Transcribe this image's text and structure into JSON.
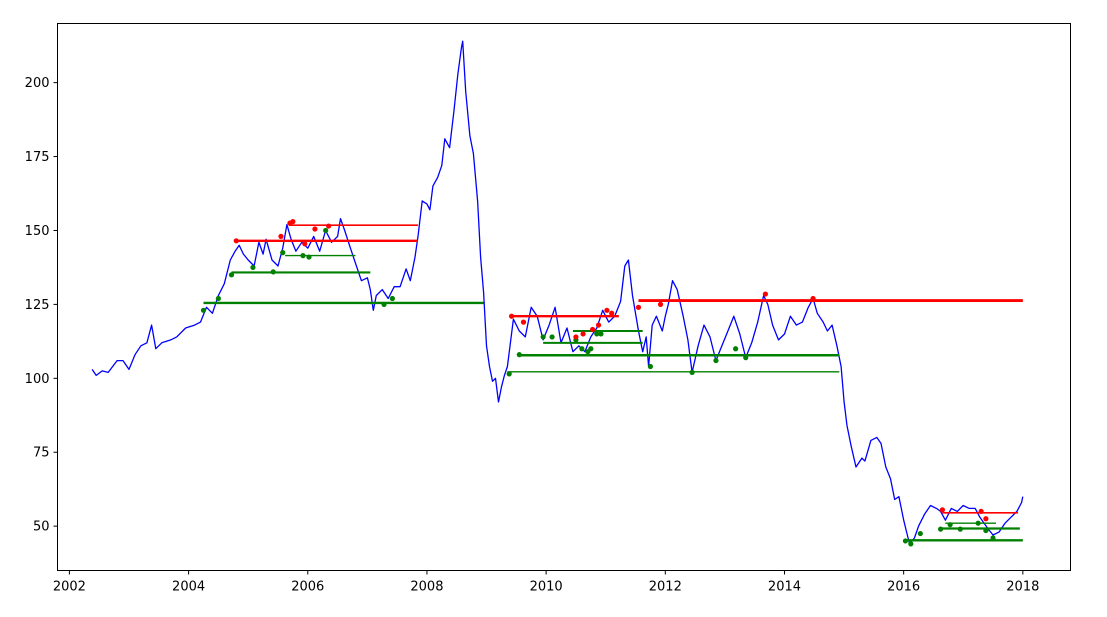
{
  "chart_data": {
    "type": "line",
    "title": "",
    "xlabel": "",
    "ylabel": "",
    "xlim": [
      2001.8,
      2018.8
    ],
    "ylim": [
      35,
      220
    ],
    "x_ticks": [
      {
        "value": 2002,
        "label": "2002"
      },
      {
        "value": 2004,
        "label": "2004"
      },
      {
        "value": 2006,
        "label": "2006"
      },
      {
        "value": 2008,
        "label": "2008"
      },
      {
        "value": 2010,
        "label": "2010"
      },
      {
        "value": 2012,
        "label": "2012"
      },
      {
        "value": 2014,
        "label": "2014"
      },
      {
        "value": 2016,
        "label": "2016"
      },
      {
        "value": 2018,
        "label": "2018"
      }
    ],
    "y_ticks": [
      {
        "value": 50,
        "label": "50"
      },
      {
        "value": 75,
        "label": "75"
      },
      {
        "value": 100,
        "label": "100"
      },
      {
        "value": 125,
        "label": "125"
      },
      {
        "value": 150,
        "label": "150"
      },
      {
        "value": 175,
        "label": "175"
      },
      {
        "value": 200,
        "label": "200"
      }
    ],
    "grid": false,
    "legend": "none",
    "colors": {
      "price": "#0000ff",
      "resistance": "#ff0000",
      "support": "#008000"
    },
    "price": [
      [
        2002.38,
        103
      ],
      [
        2002.45,
        101
      ],
      [
        2002.55,
        102.5
      ],
      [
        2002.65,
        102
      ],
      [
        2002.8,
        106
      ],
      [
        2002.9,
        106
      ],
      [
        2003.0,
        103
      ],
      [
        2003.1,
        108
      ],
      [
        2003.2,
        111
      ],
      [
        2003.3,
        112
      ],
      [
        2003.38,
        118
      ],
      [
        2003.45,
        110
      ],
      [
        2003.55,
        112
      ],
      [
        2003.7,
        113
      ],
      [
        2003.8,
        114
      ],
      [
        2003.95,
        117
      ],
      [
        2004.1,
        118
      ],
      [
        2004.2,
        119
      ],
      [
        2004.3,
        124
      ],
      [
        2004.4,
        122
      ],
      [
        2004.5,
        128
      ],
      [
        2004.6,
        132
      ],
      [
        2004.7,
        140
      ],
      [
        2004.78,
        143
      ],
      [
        2004.85,
        145
      ],
      [
        2004.92,
        142
      ],
      [
        2005.0,
        140
      ],
      [
        2005.1,
        138
      ],
      [
        2005.18,
        146
      ],
      [
        2005.25,
        142
      ],
      [
        2005.3,
        147
      ],
      [
        2005.4,
        140
      ],
      [
        2005.5,
        138
      ],
      [
        2005.58,
        144
      ],
      [
        2005.65,
        152
      ],
      [
        2005.72,
        147
      ],
      [
        2005.8,
        143
      ],
      [
        2005.9,
        146
      ],
      [
        2006.0,
        144
      ],
      [
        2006.1,
        148
      ],
      [
        2006.2,
        143
      ],
      [
        2006.3,
        150
      ],
      [
        2006.4,
        146
      ],
      [
        2006.5,
        148
      ],
      [
        2006.55,
        154
      ],
      [
        2006.62,
        150
      ],
      [
        2006.7,
        145
      ],
      [
        2006.8,
        139
      ],
      [
        2006.9,
        133
      ],
      [
        2007.0,
        134
      ],
      [
        2007.05,
        130
      ],
      [
        2007.1,
        123
      ],
      [
        2007.15,
        128
      ],
      [
        2007.25,
        130
      ],
      [
        2007.35,
        127
      ],
      [
        2007.45,
        131
      ],
      [
        2007.55,
        131
      ],
      [
        2007.65,
        137
      ],
      [
        2007.72,
        133
      ],
      [
        2007.8,
        141
      ],
      [
        2007.85,
        148
      ],
      [
        2007.92,
        160
      ],
      [
        2008.0,
        159
      ],
      [
        2008.05,
        157
      ],
      [
        2008.1,
        165
      ],
      [
        2008.18,
        168
      ],
      [
        2008.25,
        172
      ],
      [
        2008.3,
        181
      ],
      [
        2008.38,
        178
      ],
      [
        2008.45,
        190
      ],
      [
        2008.52,
        203
      ],
      [
        2008.58,
        212
      ],
      [
        2008.6,
        214
      ],
      [
        2008.65,
        197
      ],
      [
        2008.72,
        182
      ],
      [
        2008.78,
        176
      ],
      [
        2008.85,
        160
      ],
      [
        2008.9,
        141
      ],
      [
        2008.95,
        129
      ],
      [
        2009.0,
        111
      ],
      [
        2009.05,
        104
      ],
      [
        2009.1,
        99
      ],
      [
        2009.15,
        100
      ],
      [
        2009.2,
        92
      ],
      [
        2009.25,
        97
      ],
      [
        2009.3,
        101
      ],
      [
        2009.35,
        104
      ],
      [
        2009.45,
        120
      ],
      [
        2009.55,
        116
      ],
      [
        2009.65,
        114
      ],
      [
        2009.75,
        124
      ],
      [
        2009.85,
        121
      ],
      [
        2009.95,
        113
      ],
      [
        2010.05,
        118
      ],
      [
        2010.15,
        124
      ],
      [
        2010.25,
        112
      ],
      [
        2010.35,
        117
      ],
      [
        2010.45,
        109
      ],
      [
        2010.55,
        111
      ],
      [
        2010.65,
        109
      ],
      [
        2010.75,
        114
      ],
      [
        2010.85,
        117
      ],
      [
        2010.95,
        123
      ],
      [
        2011.05,
        119
      ],
      [
        2011.15,
        121
      ],
      [
        2011.25,
        126
      ],
      [
        2011.32,
        138
      ],
      [
        2011.38,
        140
      ],
      [
        2011.45,
        128
      ],
      [
        2011.55,
        116
      ],
      [
        2011.62,
        109
      ],
      [
        2011.68,
        114
      ],
      [
        2011.72,
        104
      ],
      [
        2011.78,
        118
      ],
      [
        2011.85,
        121
      ],
      [
        2011.95,
        116
      ],
      [
        2012.0,
        121
      ],
      [
        2012.05,
        125
      ],
      [
        2012.12,
        133
      ],
      [
        2012.2,
        130
      ],
      [
        2012.3,
        121
      ],
      [
        2012.38,
        113
      ],
      [
        2012.45,
        102
      ],
      [
        2012.55,
        111
      ],
      [
        2012.65,
        118
      ],
      [
        2012.75,
        114
      ],
      [
        2012.85,
        106
      ],
      [
        2012.95,
        111
      ],
      [
        2013.05,
        116
      ],
      [
        2013.15,
        121
      ],
      [
        2013.25,
        115
      ],
      [
        2013.35,
        107
      ],
      [
        2013.45,
        112
      ],
      [
        2013.55,
        119
      ],
      [
        2013.65,
        128
      ],
      [
        2013.72,
        125
      ],
      [
        2013.8,
        118
      ],
      [
        2013.9,
        113
      ],
      [
        2014.0,
        115
      ],
      [
        2014.1,
        121
      ],
      [
        2014.2,
        118
      ],
      [
        2014.3,
        119
      ],
      [
        2014.4,
        124
      ],
      [
        2014.48,
        127
      ],
      [
        2014.55,
        122
      ],
      [
        2014.65,
        119
      ],
      [
        2014.72,
        116
      ],
      [
        2014.8,
        118
      ],
      [
        2014.88,
        111
      ],
      [
        2014.95,
        104
      ],
      [
        2015.0,
        92
      ],
      [
        2015.05,
        84
      ],
      [
        2015.12,
        77
      ],
      [
        2015.2,
        70
      ],
      [
        2015.3,
        73
      ],
      [
        2015.35,
        72
      ],
      [
        2015.45,
        79
      ],
      [
        2015.55,
        80
      ],
      [
        2015.62,
        78
      ],
      [
        2015.7,
        70
      ],
      [
        2015.78,
        66
      ],
      [
        2015.85,
        59
      ],
      [
        2015.92,
        60
      ],
      [
        2016.0,
        52
      ],
      [
        2016.05,
        48
      ],
      [
        2016.1,
        44
      ],
      [
        2016.18,
        46
      ],
      [
        2016.25,
        50
      ],
      [
        2016.35,
        54
      ],
      [
        2016.45,
        57
      ],
      [
        2016.55,
        56
      ],
      [
        2016.62,
        55
      ],
      [
        2016.7,
        52
      ],
      [
        2016.8,
        56
      ],
      [
        2016.9,
        55
      ],
      [
        2017.0,
        57
      ],
      [
        2017.1,
        56
      ],
      [
        2017.2,
        56
      ],
      [
        2017.28,
        53
      ],
      [
        2017.35,
        51
      ],
      [
        2017.42,
        49
      ],
      [
        2017.5,
        47
      ],
      [
        2017.6,
        48
      ],
      [
        2017.7,
        51
      ],
      [
        2017.8,
        53
      ],
      [
        2017.9,
        55
      ],
      [
        2017.98,
        58
      ],
      [
        2018.0,
        60
      ]
    ],
    "support_lines": [
      {
        "x1": 2004.25,
        "x2": 2008.95,
        "y": 125.5,
        "width": 2.4
      },
      {
        "x1": 2004.72,
        "x2": 2007.05,
        "y": 135.8,
        "width": 2.2
      },
      {
        "x1": 2005.62,
        "x2": 2006.8,
        "y": 141.5,
        "width": 1.4
      },
      {
        "x1": 2009.52,
        "x2": 2014.92,
        "y": 107.8,
        "width": 2.4
      },
      {
        "x1": 2009.35,
        "x2": 2014.92,
        "y": 102.2,
        "width": 1.4
      },
      {
        "x1": 2009.95,
        "x2": 2011.62,
        "y": 112.0,
        "width": 2.0
      },
      {
        "x1": 2010.45,
        "x2": 2011.62,
        "y": 116.0,
        "width": 2.0
      },
      {
        "x1": 2016.05,
        "x2": 2018.0,
        "y": 45.2,
        "width": 2.4
      },
      {
        "x1": 2016.6,
        "x2": 2017.95,
        "y": 49.2,
        "width": 2.2
      },
      {
        "x1": 2016.7,
        "x2": 2017.55,
        "y": 51.0,
        "width": 1.4
      }
    ],
    "resistance_lines": [
      {
        "x1": 2004.78,
        "x2": 2007.85,
        "y": 146.5,
        "width": 2.4
      },
      {
        "x1": 2005.68,
        "x2": 2007.85,
        "y": 151.8,
        "width": 1.6
      },
      {
        "x1": 2009.42,
        "x2": 2011.22,
        "y": 121.0,
        "width": 2.4
      },
      {
        "x1": 2011.55,
        "x2": 2018.0,
        "y": 126.3,
        "width": 2.8
      },
      {
        "x1": 2016.65,
        "x2": 2017.92,
        "y": 54.5,
        "width": 1.6
      }
    ],
    "support_points": [
      [
        2004.25,
        123
      ],
      [
        2004.5,
        127
      ],
      [
        2004.72,
        135
      ],
      [
        2005.08,
        137.5
      ],
      [
        2005.42,
        136
      ],
      [
        2005.58,
        142.5
      ],
      [
        2005.92,
        141.5
      ],
      [
        2006.02,
        141
      ],
      [
        2006.3,
        150
      ],
      [
        2007.28,
        125
      ],
      [
        2007.42,
        127
      ],
      [
        2009.38,
        101.5
      ],
      [
        2009.55,
        108
      ],
      [
        2009.95,
        114
      ],
      [
        2010.1,
        114
      ],
      [
        2010.5,
        113
      ],
      [
        2010.6,
        110
      ],
      [
        2010.7,
        109
      ],
      [
        2010.75,
        110
      ],
      [
        2010.85,
        115
      ],
      [
        2010.92,
        115
      ],
      [
        2011.75,
        104
      ],
      [
        2012.45,
        102
      ],
      [
        2012.85,
        106
      ],
      [
        2013.18,
        110
      ],
      [
        2013.35,
        107
      ],
      [
        2016.03,
        45
      ],
      [
        2016.12,
        44
      ],
      [
        2016.28,
        47.5
      ],
      [
        2016.62,
        49
      ],
      [
        2016.78,
        50.5
      ],
      [
        2016.95,
        49
      ],
      [
        2017.25,
        51
      ],
      [
        2017.38,
        48.5
      ],
      [
        2017.5,
        46
      ]
    ],
    "resistance_points": [
      [
        2004.8,
        146.5
      ],
      [
        2005.55,
        148
      ],
      [
        2005.7,
        152.5
      ],
      [
        2005.75,
        153
      ],
      [
        2005.95,
        145.5
      ],
      [
        2006.12,
        150.5
      ],
      [
        2006.35,
        151.5
      ],
      [
        2009.42,
        121
      ],
      [
        2009.62,
        119
      ],
      [
        2010.5,
        114
      ],
      [
        2010.62,
        115
      ],
      [
        2010.78,
        116.5
      ],
      [
        2010.88,
        118
      ],
      [
        2011.02,
        123
      ],
      [
        2011.1,
        122
      ],
      [
        2011.55,
        124
      ],
      [
        2011.92,
        125
      ],
      [
        2013.68,
        128.5
      ],
      [
        2014.48,
        127
      ],
      [
        2016.65,
        55.5
      ],
      [
        2017.3,
        55
      ],
      [
        2017.38,
        52.5
      ]
    ]
  }
}
